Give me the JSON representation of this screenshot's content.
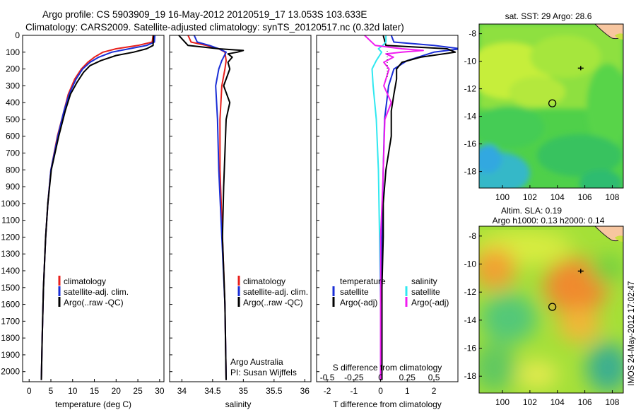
{
  "title": {
    "line1": "Argo profile: CS 5903909_19 16-May-2012 20120519_17 13.053S 103.633E",
    "line2": "Climatology: CARS2009. Satellite-adjusted climatology: synTS_20120517.nc (0.32d later)"
  },
  "side_stamp": "IMOS 24-May-2012 17:02:47",
  "colors": {
    "red": "#e8201c",
    "blue": "#1a2ed6",
    "black": "#000000",
    "cyan": "#30e8f0",
    "magenta": "#f01cf0",
    "land": "#f7c6a0"
  },
  "depth_axis": {
    "ticks": [
      0,
      100,
      200,
      300,
      400,
      500,
      600,
      700,
      800,
      900,
      1000,
      1100,
      1200,
      1300,
      1400,
      1500,
      1600,
      1700,
      1800,
      1900,
      2000
    ],
    "range": [
      0,
      2060
    ]
  },
  "panel_temperature": {
    "xlabel": "temperature (deg C)",
    "xticks": [
      "0",
      "5",
      "10",
      "15",
      "20",
      "25",
      "30"
    ],
    "xrange": [
      -1.5,
      31
    ],
    "legend": [
      "climatology",
      "satellite-adj. clim.",
      "Argo(..raw -QC)"
    ],
    "chart_data": {
      "type": "line",
      "series": [
        {
          "name": "climatology",
          "color": "red",
          "depth": [
            0,
            40,
            60,
            80,
            100,
            130,
            160,
            200,
            260,
            350,
            450,
            600,
            800,
            1000,
            1200,
            1500,
            1800,
            2050
          ],
          "values": [
            28.5,
            28.3,
            25,
            20,
            17,
            15,
            13.5,
            12,
            10.5,
            9,
            8,
            6.5,
            5,
            4.3,
            3.8,
            3.3,
            3,
            2.8
          ]
        },
        {
          "name": "satellite-adj. clim.",
          "color": "blue",
          "depth": [
            0,
            40,
            60,
            80,
            100,
            130,
            160,
            200,
            260,
            350,
            450,
            600,
            800,
            1000,
            1200,
            1500,
            1800,
            2050
          ],
          "values": [
            28.9,
            28.8,
            27,
            23,
            19,
            16,
            14,
            12.3,
            10.8,
            9.2,
            8,
            6.6,
            5,
            4.3,
            3.8,
            3.3,
            3,
            2.8
          ]
        },
        {
          "name": "Argo(..raw -QC)",
          "color": "black",
          "depth": [
            0,
            60,
            80,
            100,
            120,
            150,
            180,
            220,
            280,
            350,
            450,
            600,
            800,
            1000,
            1200,
            1500,
            1800,
            2050
          ],
          "values": [
            28.6,
            28.5,
            27,
            24,
            20,
            16.5,
            14,
            12.5,
            11,
            9.5,
            8.3,
            6.8,
            5.1,
            4.3,
            3.8,
            3.3,
            3,
            2.8
          ]
        }
      ]
    }
  },
  "panel_salinity": {
    "xlabel": "salinity",
    "xticks": [
      "34",
      "34.5",
      "35",
      "35.5",
      "36"
    ],
    "xrange": [
      33.8,
      36.1
    ],
    "legend": [
      "climatology",
      "satellite-adj. clim.",
      "Argo(..raw -QC)"
    ],
    "credit": [
      "Argo Australia",
      "PI: Susan Wijffels"
    ],
    "chart_data": {
      "type": "line",
      "series": [
        {
          "name": "climatology",
          "color": "red",
          "depth": [
            0,
            40,
            60,
            80,
            100,
            150,
            200,
            300,
            500,
            800,
            1200,
            1600,
            2050
          ],
          "values": [
            34.1,
            34.15,
            34.4,
            34.6,
            34.7,
            34.72,
            34.7,
            34.65,
            34.62,
            34.62,
            34.66,
            34.7,
            34.72
          ]
        },
        {
          "name": "satellite-adj. clim.",
          "color": "blue",
          "depth": [
            0,
            40,
            60,
            80,
            100,
            150,
            200,
            300,
            500,
            800,
            1200,
            1600,
            2050
          ],
          "values": [
            34.2,
            34.25,
            34.45,
            34.6,
            34.72,
            34.65,
            34.6,
            34.55,
            34.58,
            34.6,
            34.65,
            34.7,
            34.72
          ]
        },
        {
          "name": "Argo(..raw -QC)",
          "color": "black",
          "depth": [
            0,
            60,
            80,
            90,
            100,
            110,
            130,
            160,
            200,
            300,
            400,
            500,
            700,
            900,
            1200,
            1600,
            2050
          ],
          "values": [
            33.95,
            34.1,
            34.6,
            35.0,
            34.9,
            34.75,
            34.82,
            34.75,
            34.78,
            34.68,
            34.78,
            34.72,
            34.7,
            34.68,
            34.66,
            34.7,
            34.72
          ]
        }
      ]
    }
  },
  "panel_difference": {
    "top_ticks": [
      "-0.5",
      "-0.25",
      "0",
      "0.25",
      "0.5"
    ],
    "top_label": "S difference from climatology",
    "xlabel": "T difference from climatology",
    "xticks": [
      "-2",
      "-1",
      "0",
      "1",
      "2"
    ],
    "xrange": [
      -2.4,
      2.9
    ],
    "legend_temp_title": "temperature",
    "legend_sal_title": "salinity",
    "legend_temp": [
      "satellite",
      "Argo(-adj)"
    ],
    "legend_sal": [
      "satellite",
      "Argo(-adj)"
    ],
    "chart_data": {
      "type": "line",
      "series": [
        {
          "name": "temperature satellite",
          "color": "blue",
          "depth": [
            0,
            40,
            60,
            80,
            100,
            150,
            200,
            300,
            500,
            800,
            1200,
            1600,
            2050
          ],
          "values": [
            0.4,
            0.5,
            2.0,
            3.0,
            2.0,
            1.0,
            0.5,
            0.3,
            0.15,
            0.1,
            0.05,
            0.02,
            0
          ]
        },
        {
          "name": "temperature Argo(-adj)",
          "color": "black",
          "depth": [
            0,
            60,
            80,
            100,
            130,
            160,
            200,
            260,
            350,
            450,
            600,
            800,
            1000,
            1200,
            1500,
            2050
          ],
          "values": [
            0.1,
            0.2,
            2.5,
            2.8,
            1.5,
            0.8,
            0.6,
            0.6,
            0.5,
            0.4,
            0.4,
            0.2,
            0.1,
            0.1,
            0.05,
            0.05
          ]
        },
        {
          "name": "salinity satellite",
          "color": "cyan",
          "depth": [
            0,
            40,
            60,
            80,
            100,
            150,
            200,
            300,
            500,
            800,
            1200,
            1600,
            2050
          ],
          "values": [
            0.05,
            0.05,
            0.02,
            -0.02,
            0.01,
            -0.04,
            -0.08,
            -0.07,
            -0.04,
            -0.02,
            -0.01,
            0,
            0
          ]
        },
        {
          "name": "salinity Argo(-adj)",
          "color": "magenta",
          "depth": [
            0,
            60,
            80,
            90,
            100,
            110,
            130,
            160,
            200,
            300,
            400,
            500,
            700,
            900,
            1200,
            1600,
            2050
          ],
          "values": [
            -0.15,
            -0.05,
            0.2,
            0.4,
            0.2,
            0.05,
            0.12,
            0.03,
            0.08,
            0.03,
            0.1,
            0.04,
            0.03,
            0.02,
            0,
            0,
            0
          ]
        }
      ]
    }
  },
  "map_sst": {
    "title": "sat. SST: 29 Argo: 28.6",
    "xticks": [
      "100",
      "102",
      "104",
      "106",
      "108"
    ],
    "yticks": [
      "-8",
      "-10",
      "-12",
      "-14",
      "-16",
      "-18"
    ],
    "lon_range": [
      98.3,
      108.8
    ],
    "lat_range": [
      -19.2,
      -7.3
    ],
    "argo_lonlat": [
      103.633,
      -13.053
    ],
    "marker_lonlat": [
      105.7,
      -10.5
    ]
  },
  "map_sla": {
    "title_line1": "Altim. SLA: 0.19",
    "title_line2": "Argo h1000: 0.13 h2000: 0.14",
    "xticks": [
      "100",
      "102",
      "104",
      "106",
      "108"
    ],
    "yticks": [
      "-8",
      "-10",
      "-12",
      "-14",
      "-16",
      "-18"
    ],
    "lon_range": [
      98.3,
      108.8
    ],
    "lat_range": [
      -19.2,
      -7.3
    ],
    "argo_lonlat": [
      103.633,
      -13.053
    ],
    "marker_lonlat": [
      105.7,
      -10.5
    ]
  }
}
